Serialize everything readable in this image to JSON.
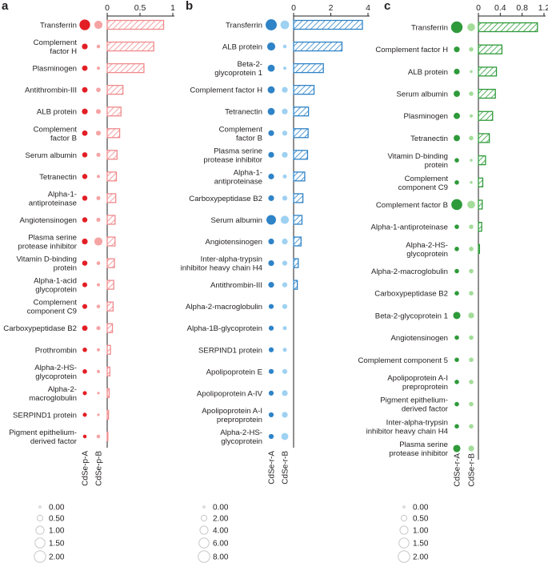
{
  "chart_data": [
    {
      "type": "bar",
      "panel_label": "a",
      "color_dark": "#e31e24",
      "color_light": "#f6a3a4",
      "hatch_color": "#f08a8c",
      "xlim": [
        0,
        1
      ],
      "xticks": [
        "0",
        "0.5",
        "1"
      ],
      "columns": [
        "CdSe-p-A",
        "CdSe-p-B"
      ],
      "proteins": [
        "Transferrin",
        "Complement factor H",
        "Plasminogen",
        "Antithrombin-III",
        "ALB protein",
        "Complement factor B",
        "Serum albumin",
        "Tetranectin",
        "Alpha-1-antiproteinase",
        "Angiotensinogen",
        "Plasma serine protease inhibitor",
        "Vitamin D-binding protein",
        "Alpha-1-acid glycoprotein",
        "Complement component C9",
        "Carboxypeptidase B2",
        "Prothrombin",
        "Alpha-2-HS-glycoprotein",
        "Alpha-2-macroglobulin",
        "SERPIND1 protein",
        "Pigment epithelium-derived factor"
      ],
      "values": [
        0.86,
        0.71,
        0.56,
        0.24,
        0.21,
        0.19,
        0.15,
        0.14,
        0.13,
        0.12,
        0.12,
        0.11,
        0.1,
        0.09,
        0.08,
        0.05,
        0.04,
        0.03,
        0.02,
        0.01
      ],
      "abundance_a": [
        1.7,
        0.5,
        0.45,
        0.45,
        0.5,
        0.45,
        0.4,
        0.4,
        0.4,
        0.4,
        0.5,
        0.4,
        0.35,
        0.35,
        0.45,
        0.3,
        0.3,
        0.25,
        0.25,
        0.2
      ],
      "abundance_b": [
        1.0,
        0.2,
        0.15,
        0.3,
        0.35,
        0.35,
        0.25,
        0.15,
        0.25,
        0.25,
        1.0,
        0.2,
        0.15,
        0.2,
        0.25,
        0.15,
        0.15,
        0.1,
        0.1,
        0.2
      ]
    },
    {
      "type": "bar",
      "panel_label": "b",
      "color_dark": "#2f83c7",
      "color_light": "#9ed1f2",
      "hatch_color": "#2f83c7",
      "xlim": [
        0,
        4
      ],
      "xticks": [
        "0",
        "2",
        "4"
      ],
      "columns": [
        "CdSe-r-A",
        "CdSe-r-B"
      ],
      "proteins": [
        "Transferrin",
        "ALB protein",
        "Beta-2-glycoprotein 1",
        "Complement factor H",
        "Tetranectin",
        "Complement factor B",
        "Plasma serine protease inhibitor",
        "Alpha-1-antiproteinase",
        "Carboxypeptidase B2",
        "Serum albumin",
        "Angiotensinogen",
        "Inter-alpha-trypsin inhibitor heavy chain H4",
        "Antithrombin-III",
        "Alpha-2-macroglobulin",
        "Alpha-1B-glycoprotein",
        "SERPIND1 protein",
        "Apolipoprotein E",
        "Apolipoprotein A-IV",
        "Apolipoprotein A-I preproprotein",
        "Alpha-2-HS-glycoprotein"
      ],
      "values": [
        3.7,
        2.6,
        1.6,
        1.1,
        0.8,
        0.78,
        0.75,
        0.6,
        0.5,
        0.45,
        0.4,
        0.25,
        0.2,
        0.0,
        0.0,
        0.0,
        0.0,
        0.0,
        0.0,
        0.0
      ],
      "abundance_a": [
        7.5,
        4.0,
        3.0,
        3.0,
        3.0,
        2.0,
        2.0,
        2.0,
        2.0,
        5.5,
        2.0,
        2.0,
        2.0,
        1.5,
        1.5,
        1.5,
        1.5,
        1.5,
        1.5,
        1.5
      ],
      "abundance_b": [
        4.5,
        0.8,
        0.6,
        2.0,
        2.0,
        1.5,
        2.0,
        1.0,
        1.5,
        4.0,
        2.0,
        1.5,
        1.5,
        1.5,
        1.0,
        1.0,
        1.5,
        2.0,
        2.0,
        3.0
      ]
    },
    {
      "type": "bar",
      "panel_label": "c",
      "color_dark": "#2e9a3a",
      "color_light": "#a4dc9a",
      "hatch_color": "#2e9a3a",
      "xlim": [
        0,
        1.2
      ],
      "xticks": [
        "0",
        "0.4",
        "0.8",
        "1.2"
      ],
      "columns": [
        "CdSe-r-A",
        "CdSe-r-B"
      ],
      "proteins": [
        "Transferrin",
        "Complement factor H",
        "ALB protein",
        "Serum albumin",
        "Plasminogen",
        "Tetranectin",
        "Vitamin D-binding protein",
        "Complement component C9",
        "Complement factor B",
        "Alpha-1-antiproteinase",
        "Alpha-2-HS-glycoprotein",
        "Alpha-2-macroglobulin",
        "Carboxypeptidase B2",
        "Beta-2-glycoprotein 1",
        "Angiotensinogen",
        "Complement component 5",
        "Apolipoprotein A-I preproprotein",
        "Pigment epithelium-derived factor",
        "Inter-alpha-trypsin inhibitor heavy chain H4",
        "Plasma serine protease inhibitor"
      ],
      "values": [
        1.08,
        0.43,
        0.33,
        0.31,
        0.26,
        0.2,
        0.13,
        0.08,
        0.07,
        0.06,
        0.02,
        0.0,
        0.0,
        0.0,
        0.0,
        0.0,
        0.0,
        0.0,
        0.0,
        0.0
      ],
      "abundance_a": [
        2.0,
        0.5,
        0.5,
        0.6,
        0.6,
        0.6,
        0.3,
        0.3,
        1.8,
        0.3,
        0.3,
        0.3,
        0.3,
        0.8,
        0.3,
        0.3,
        0.3,
        0.3,
        0.3,
        0.8
      ],
      "abundance_b": [
        0.9,
        0.3,
        0.12,
        0.3,
        0.15,
        0.3,
        0.12,
        0.12,
        0.9,
        0.3,
        0.3,
        0.3,
        0.3,
        0.5,
        0.3,
        0.3,
        0.3,
        0.3,
        0.3,
        0.5
      ]
    }
  ],
  "legends": [
    {
      "panel": "a",
      "labels": [
        "0.00",
        "0.50",
        "1.00",
        "1.50",
        "2.00"
      ],
      "values": [
        0,
        0.5,
        1.0,
        1.5,
        2.0
      ],
      "max": 2.0
    },
    {
      "panel": "b",
      "labels": [
        "0.00",
        "2.00",
        "4.00",
        "6.00",
        "8.00"
      ],
      "values": [
        0,
        2,
        4,
        6,
        8
      ],
      "max": 8.0
    },
    {
      "panel": "c",
      "labels": [
        "0.00",
        "0.50",
        "1.00",
        "1.50",
        "2.00"
      ],
      "values": [
        0,
        0.5,
        1.0,
        1.5,
        2.0
      ],
      "max": 2.0
    }
  ]
}
